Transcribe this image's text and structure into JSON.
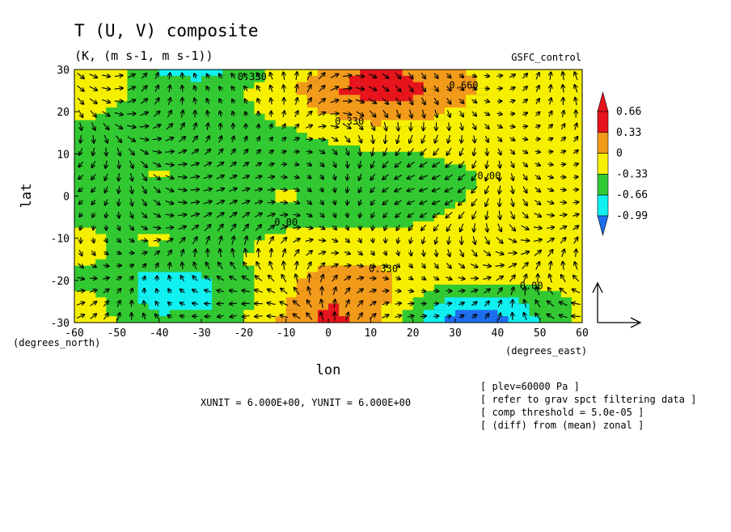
{
  "chart_data": {
    "type": "heatmap",
    "title": "T (U, V) composite",
    "units": "(K, (m s-1, m s-1))",
    "experiment": "GSFC_control",
    "xlabel": "lon",
    "ylabel": "lat",
    "x_units_label": "(degrees_east)",
    "y_units_label": "(degrees_north)",
    "xlim": [
      -60,
      60
    ],
    "ylim": [
      -30,
      30
    ],
    "x_ticks": [
      "-60",
      "-50",
      "-40",
      "-30",
      "-20",
      "-10",
      "0",
      "10",
      "20",
      "30",
      "40",
      "50",
      "60"
    ],
    "y_ticks": [
      "30",
      "20",
      "10",
      "0",
      "-10",
      "-20",
      "-30"
    ],
    "colorbar": {
      "labels": [
        "0.66",
        "0.33",
        "0",
        "-0.33",
        "-0.66",
        "-0.99"
      ],
      "colors": [
        "#e8141c",
        "#f29a1a",
        "#f6f000",
        "#32c832",
        "#10f0f0",
        "#1e6ef0"
      ]
    },
    "contour_labels": [
      "0.330",
      "0.330",
      "0.660",
      "0.00",
      "0.00",
      "0.330",
      "0.00"
    ],
    "field": {
      "lon": [
        -60,
        -50,
        -40,
        -30,
        -20,
        -10,
        0,
        10,
        20,
        30,
        40,
        50,
        60
      ],
      "lat": [
        30,
        25,
        20,
        15,
        10,
        5,
        0,
        -5,
        -10,
        -15,
        -20,
        -25,
        -30
      ],
      "values": [
        [
          0.35,
          0.1,
          -0.4,
          -0.5,
          -0.2,
          0.1,
          0.4,
          0.7,
          0.6,
          0.35,
          0.2,
          0.1,
          0.05
        ],
        [
          0.2,
          0.05,
          -0.1,
          -0.15,
          0.0,
          0.25,
          0.6,
          0.85,
          0.8,
          0.45,
          0.25,
          0.1,
          0.05
        ],
        [
          0.1,
          -0.05,
          -0.1,
          -0.05,
          -0.05,
          0.1,
          0.35,
          0.5,
          0.45,
          0.3,
          0.15,
          0.2,
          0.1
        ],
        [
          -0.1,
          -0.15,
          -0.15,
          -0.1,
          -0.1,
          -0.05,
          0.1,
          0.2,
          0.2,
          0.1,
          0.15,
          0.15,
          0.1
        ],
        [
          -0.1,
          -0.1,
          -0.1,
          -0.1,
          -0.1,
          -0.15,
          -0.1,
          -0.05,
          0.0,
          0.05,
          0.1,
          0.1,
          0.1
        ],
        [
          -0.1,
          -0.1,
          0.05,
          -0.1,
          -0.1,
          -0.15,
          -0.15,
          -0.2,
          -0.15,
          -0.05,
          0.05,
          0.1,
          0.1
        ],
        [
          -0.15,
          -0.1,
          -0.1,
          -0.1,
          -0.1,
          0.05,
          -0.1,
          -0.2,
          -0.2,
          -0.05,
          0.1,
          0.15,
          0.1
        ],
        [
          -0.05,
          -0.1,
          -0.1,
          -0.1,
          -0.1,
          -0.1,
          -0.1,
          -0.15,
          -0.1,
          0.05,
          0.1,
          0.15,
          0.1
        ],
        [
          0.1,
          -0.05,
          0.05,
          -0.1,
          -0.05,
          0.05,
          0.1,
          0.1,
          0.15,
          0.2,
          0.2,
          0.15,
          0.1
        ],
        [
          0.1,
          -0.05,
          -0.1,
          -0.1,
          0.0,
          0.2,
          0.3,
          0.3,
          0.3,
          0.15,
          0.1,
          0.1,
          0.1
        ],
        [
          -0.1,
          -0.2,
          -0.55,
          -0.45,
          -0.1,
          0.25,
          0.5,
          0.45,
          0.2,
          0.05,
          0.05,
          0.1,
          0.1
        ],
        [
          0.2,
          -0.1,
          -0.5,
          -0.45,
          -0.1,
          0.3,
          0.65,
          0.5,
          0.05,
          -0.45,
          -0.5,
          -0.2,
          0.1
        ],
        [
          0.4,
          0.0,
          -0.2,
          -0.2,
          0.0,
          0.4,
          0.8,
          0.5,
          -0.3,
          -0.9,
          -0.8,
          -0.3,
          0.1
        ]
      ]
    },
    "vector_reference": {
      "xunit_label": "XUNIT = 6.000E+00, YUNIT = 6.000E+00"
    },
    "notes": [
      "[ plev=60000 Pa ]",
      "[ refer to grav spct filtering data ]",
      "[ comp threshold = 5.0e-05 ]",
      "[ (diff) from (mean) zonal ]"
    ]
  }
}
